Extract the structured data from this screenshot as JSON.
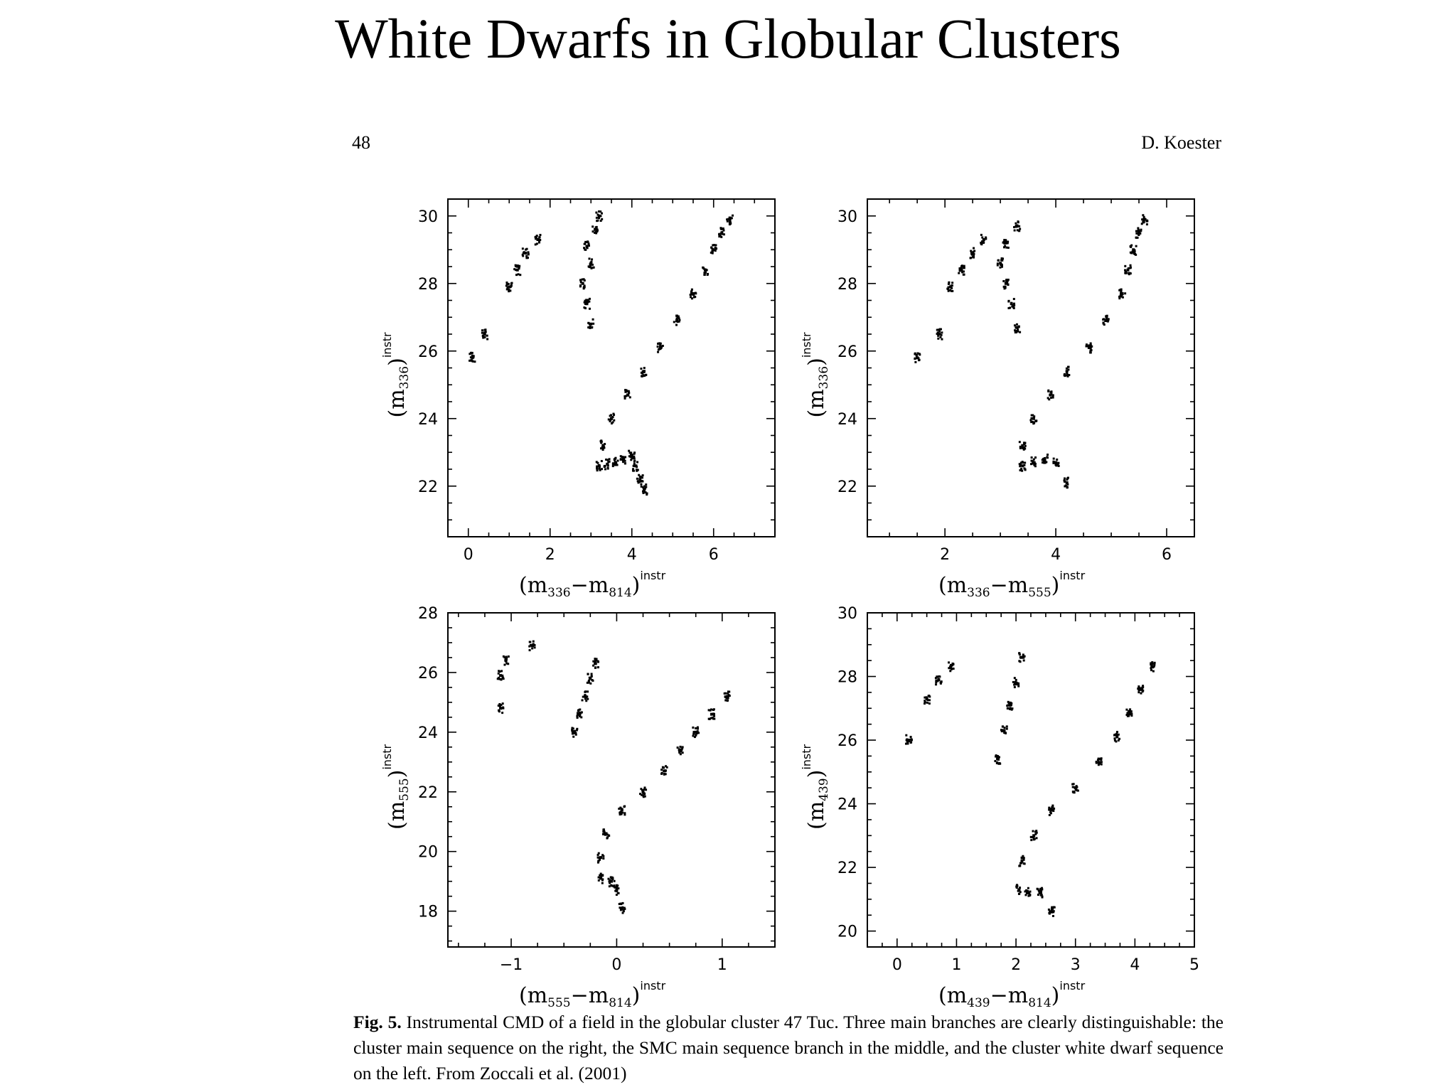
{
  "slide": {
    "title": "White Dwarfs in Globular Clusters"
  },
  "page_header": {
    "page_number": "48",
    "author": "D. Koester"
  },
  "caption": {
    "label": "Fig. 5.",
    "text": "Instrumental CMD of a field in the globular cluster 47 Tuc. Three main branches are clearly distinguishable: the cluster main sequence on the right, the SMC main sequence branch in the middle, and the cluster white dwarf sequence on the left. From Zoccali et al. (2001)"
  },
  "chart_data": [
    {
      "type": "scatter",
      "xlabel": {
        "base": "(m",
        "sub1": "336",
        "mid": "−m",
        "sub2": "814",
        "tail": ")",
        "sup": "instr"
      },
      "ylabel": {
        "base": "(m",
        "sub1": "336",
        "tail": ")",
        "sup": "instr"
      },
      "xlim": [
        -0.5,
        7.5
      ],
      "ylim": [
        30.5,
        20.5
      ],
      "xticks": [
        0,
        2,
        4,
        6
      ],
      "yticks": [
        22,
        24,
        26,
        28,
        30
      ],
      "grid": false,
      "series": [
        {
          "values": [
            [
              3.2,
              22.6
            ],
            [
              3.3,
              23.2
            ],
            [
              3.5,
              24.0
            ],
            [
              3.9,
              24.7
            ],
            [
              4.3,
              25.4
            ],
            [
              4.7,
              26.1
            ],
            [
              5.1,
              26.9
            ],
            [
              5.5,
              27.7
            ],
            [
              5.8,
              28.4
            ],
            [
              6.0,
              29.0
            ],
            [
              6.2,
              29.5
            ],
            [
              6.4,
              29.9
            ],
            [
              3.4,
              22.65
            ],
            [
              3.6,
              22.7
            ],
            [
              3.8,
              22.8
            ],
            [
              4.0,
              22.9
            ],
            [
              4.1,
              22.6
            ],
            [
              4.2,
              22.2
            ],
            [
              4.3,
              21.9
            ],
            [
              3.0,
              26.8
            ],
            [
              2.9,
              27.4
            ],
            [
              2.8,
              28.0
            ],
            [
              3.0,
              28.6
            ],
            [
              2.9,
              29.1
            ],
            [
              3.1,
              29.6
            ],
            [
              3.2,
              30.0
            ],
            [
              0.1,
              25.8
            ],
            [
              0.4,
              26.5
            ],
            [
              1.0,
              27.9
            ],
            [
              1.2,
              28.4
            ],
            [
              1.4,
              28.9
            ],
            [
              1.7,
              29.3
            ]
          ]
        }
      ]
    },
    {
      "type": "scatter",
      "xlabel": {
        "base": "(m",
        "sub1": "336",
        "mid": "−m",
        "sub2": "555",
        "tail": ")",
        "sup": "instr"
      },
      "ylabel": {
        "base": "(m",
        "sub1": "336",
        "tail": ")",
        "sup": "instr"
      },
      "xlim": [
        0.6,
        6.5
      ],
      "ylim": [
        30.5,
        20.5
      ],
      "xticks": [
        2,
        4,
        6
      ],
      "yticks": [
        22,
        24,
        26,
        28,
        30
      ],
      "grid": false,
      "series": [
        {
          "values": [
            [
              3.4,
              22.6
            ],
            [
              3.4,
              23.2
            ],
            [
              3.6,
              24.0
            ],
            [
              3.9,
              24.7
            ],
            [
              4.2,
              25.4
            ],
            [
              4.6,
              26.1
            ],
            [
              4.9,
              26.9
            ],
            [
              5.2,
              27.7
            ],
            [
              5.3,
              28.4
            ],
            [
              5.4,
              29.0
            ],
            [
              5.5,
              29.5
            ],
            [
              5.6,
              29.9
            ],
            [
              3.6,
              22.7
            ],
            [
              3.8,
              22.8
            ],
            [
              4.0,
              22.7
            ],
            [
              4.2,
              22.1
            ],
            [
              3.3,
              26.7
            ],
            [
              3.2,
              27.4
            ],
            [
              3.1,
              28.0
            ],
            [
              3.0,
              28.6
            ],
            [
              3.1,
              29.2
            ],
            [
              3.3,
              29.7
            ],
            [
              1.5,
              25.8
            ],
            [
              1.9,
              26.5
            ],
            [
              2.1,
              27.9
            ],
            [
              2.3,
              28.4
            ],
            [
              2.5,
              28.9
            ],
            [
              2.7,
              29.3
            ]
          ]
        }
      ]
    },
    {
      "type": "scatter",
      "xlabel": {
        "base": "(m",
        "sub1": "555",
        "mid": "−m",
        "sub2": "814",
        "tail": ")",
        "sup": "instr"
      },
      "ylabel": {
        "base": "(m",
        "sub1": "555",
        "tail": ")",
        "sup": "instr"
      },
      "xlim": [
        -1.6,
        1.5
      ],
      "ylim": [
        28,
        16.8
      ],
      "xticks": [
        -1,
        0,
        1
      ],
      "yticks": [
        18,
        20,
        22,
        24,
        26,
        28
      ],
      "grid": false,
      "series": [
        {
          "values": [
            [
              -0.15,
              19.1
            ],
            [
              -0.15,
              19.8
            ],
            [
              -0.1,
              20.6
            ],
            [
              0.05,
              21.4
            ],
            [
              0.25,
              22.0
            ],
            [
              0.45,
              22.7
            ],
            [
              0.6,
              23.4
            ],
            [
              0.75,
              24.0
            ],
            [
              0.9,
              24.6
            ],
            [
              1.05,
              25.2
            ],
            [
              -0.05,
              19.0
            ],
            [
              0.0,
              18.7
            ],
            [
              0.05,
              18.1
            ],
            [
              -0.4,
              24.0
            ],
            [
              -0.35,
              24.6
            ],
            [
              -0.3,
              25.2
            ],
            [
              -0.25,
              25.8
            ],
            [
              -0.2,
              26.3
            ],
            [
              -1.1,
              24.8
            ],
            [
              -1.1,
              25.9
            ],
            [
              -1.05,
              26.4
            ],
            [
              -0.8,
              26.9
            ]
          ]
        }
      ]
    },
    {
      "type": "scatter",
      "xlabel": {
        "base": "(m",
        "sub1": "439",
        "mid": "−m",
        "sub2": "814",
        "tail": ")",
        "sup": "instr"
      },
      "ylabel": {
        "base": "(m",
        "sub1": "439",
        "tail": ")",
        "sup": "instr"
      },
      "xlim": [
        -0.5,
        5.0
      ],
      "ylim": [
        30,
        19.5
      ],
      "xticks": [
        0,
        1,
        2,
        3,
        4,
        5
      ],
      "yticks": [
        20,
        22,
        24,
        26,
        28,
        30
      ],
      "grid": false,
      "series": [
        {
          "values": [
            [
              2.05,
              21.3
            ],
            [
              2.1,
              22.2
            ],
            [
              2.3,
              23.0
            ],
            [
              2.6,
              23.8
            ],
            [
              3.0,
              24.5
            ],
            [
              3.4,
              25.3
            ],
            [
              3.7,
              26.1
            ],
            [
              3.9,
              26.9
            ],
            [
              4.1,
              27.6
            ],
            [
              4.3,
              28.3
            ],
            [
              2.2,
              21.2
            ],
            [
              2.4,
              21.2
            ],
            [
              2.6,
              20.6
            ],
            [
              1.7,
              25.4
            ],
            [
              1.8,
              26.3
            ],
            [
              1.9,
              27.1
            ],
            [
              2.0,
              27.8
            ],
            [
              2.1,
              28.6
            ],
            [
              0.2,
              26.0
            ],
            [
              0.5,
              27.3
            ],
            [
              0.7,
              27.9
            ],
            [
              0.9,
              28.3
            ]
          ]
        }
      ]
    }
  ]
}
